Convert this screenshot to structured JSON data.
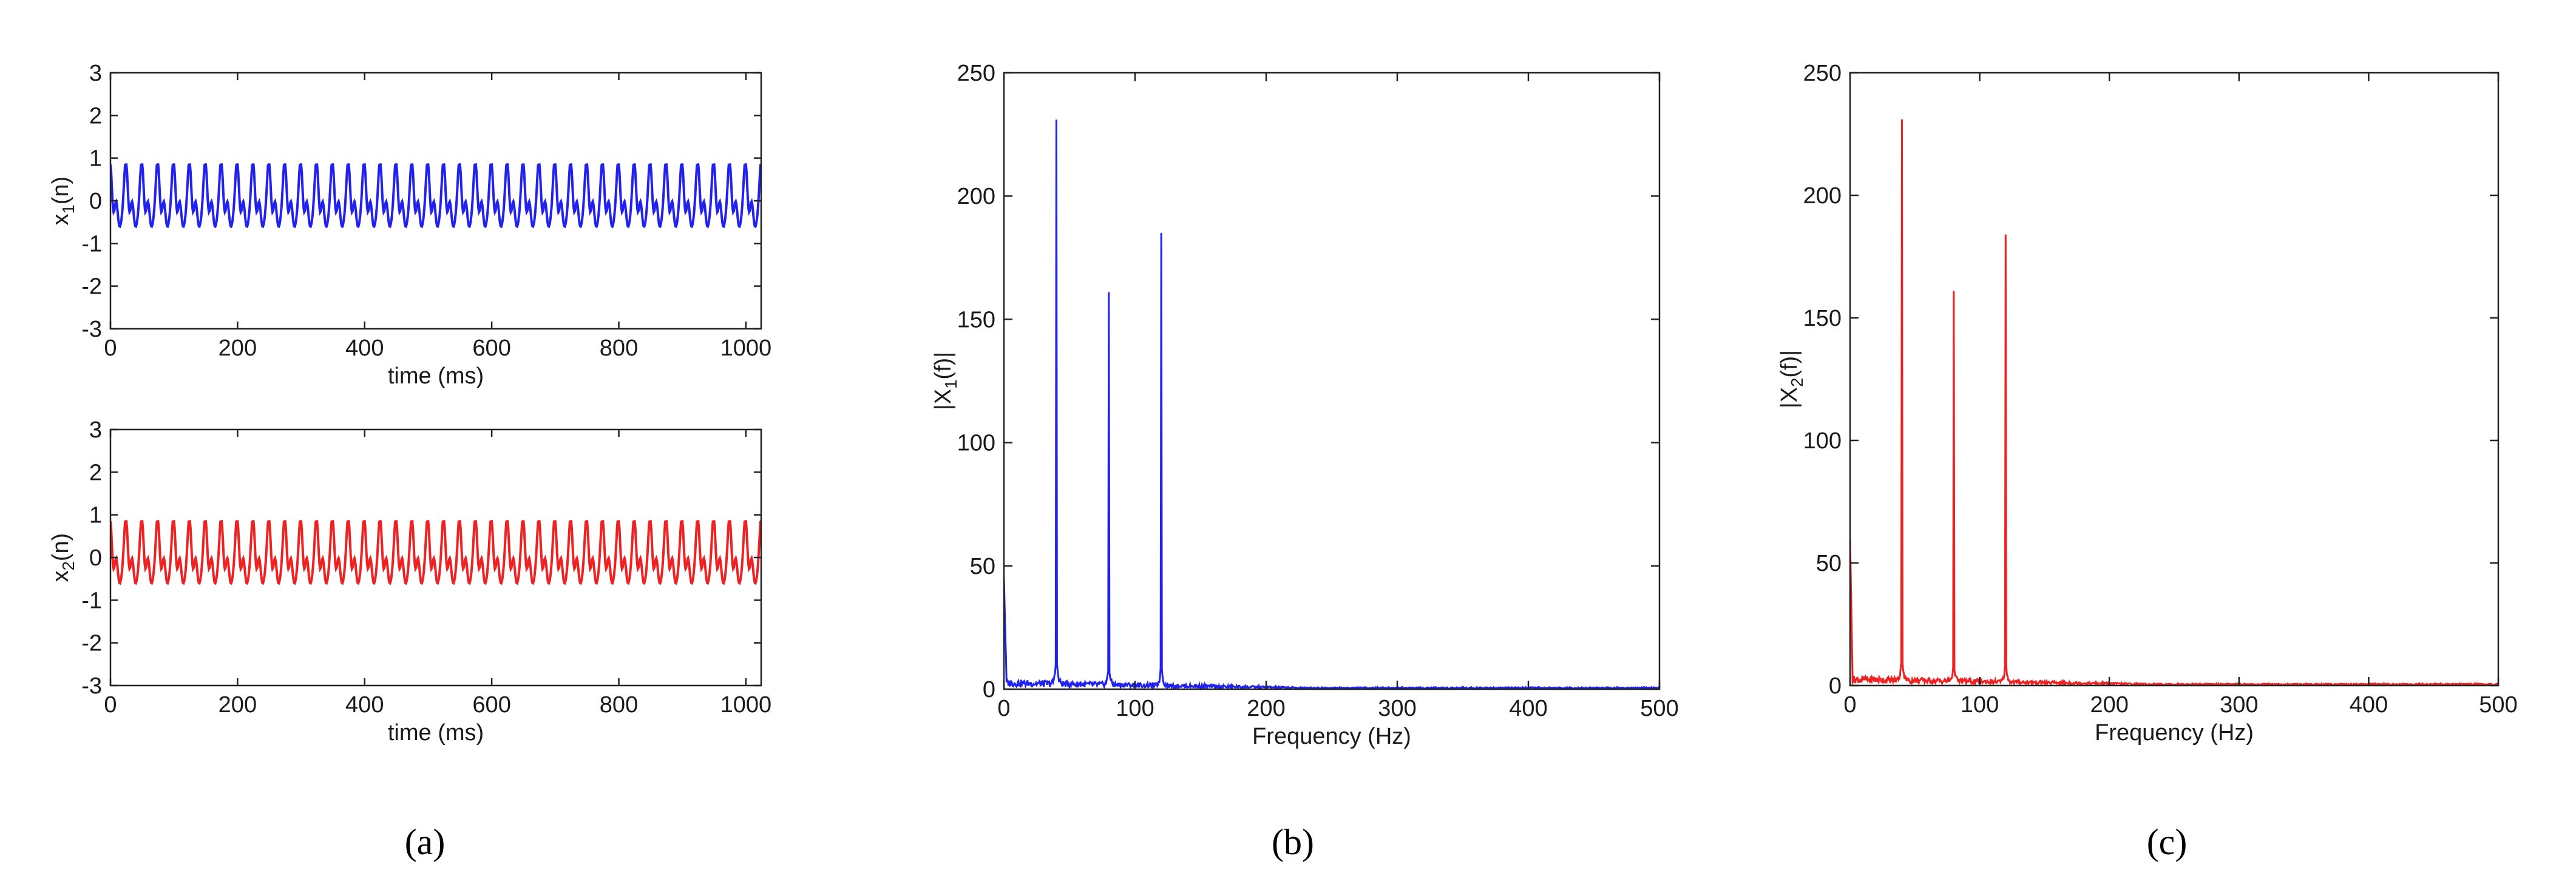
{
  "chart_data": [
    {
      "type": "line",
      "panel": "a",
      "xlabel": "time (ms)",
      "ylabel_base": "x",
      "ylabel_sub": "1",
      "ylabel_tail": "(n)",
      "xlim": [
        0,
        1024
      ],
      "ylim": [
        -3,
        3
      ],
      "xticks": [
        0,
        200,
        400,
        600,
        800,
        1000
      ],
      "yticks": [
        -3,
        -2,
        -1,
        0,
        1,
        2,
        3
      ],
      "signal": {
        "period_ms": 25,
        "amplitude_high": 0.85,
        "amplitude_low": -0.95,
        "inner_swing": 0.3,
        "samples_per_ms": 1
      },
      "color": "#2222ee",
      "grid": false,
      "legend": "none"
    },
    {
      "type": "line",
      "panel": "a",
      "xlabel": "time (ms)",
      "ylabel_base": "x",
      "ylabel_sub": "2",
      "ylabel_tail": "(n)",
      "xlim": [
        0,
        1024
      ],
      "ylim": [
        -3,
        3
      ],
      "xticks": [
        0,
        200,
        400,
        600,
        800,
        1000
      ],
      "yticks": [
        -3,
        -2,
        -1,
        0,
        1,
        2,
        3
      ],
      "signal": {
        "period_ms": 25,
        "amplitude_high": 0.85,
        "amplitude_low": -0.95,
        "inner_swing": 0.3,
        "samples_per_ms": 1
      },
      "color": "#ee2222",
      "grid": false,
      "legend": "none"
    },
    {
      "type": "line",
      "panel": "b",
      "xlabel": "Frequency (Hz)",
      "ylabel_base": "|X",
      "ylabel_sub": "1",
      "ylabel_tail": "(f)|",
      "xlim": [
        0,
        500
      ],
      "ylim": [
        0,
        250
      ],
      "xticks": [
        0,
        100,
        200,
        300,
        400,
        500
      ],
      "yticks": [
        0,
        50,
        100,
        150,
        200,
        250
      ],
      "peaks": [
        {
          "x": 40,
          "y": 231
        },
        {
          "x": 80,
          "y": 161
        },
        {
          "x": 120,
          "y": 185
        }
      ],
      "start_value": 45,
      "noise_floor": 2,
      "color": "#2222ee",
      "grid": false,
      "legend": "none"
    },
    {
      "type": "line",
      "panel": "c",
      "xlabel": "Frequency (Hz)",
      "ylabel_base": "|X",
      "ylabel_sub": "2",
      "ylabel_tail": "(f)|",
      "xlim": [
        0,
        500
      ],
      "ylim": [
        0,
        250
      ],
      "xticks": [
        0,
        100,
        200,
        300,
        400,
        500
      ],
      "yticks": [
        0,
        50,
        100,
        150,
        200,
        250
      ],
      "peaks": [
        {
          "x": 40,
          "y": 231
        },
        {
          "x": 80,
          "y": 161
        },
        {
          "x": 120,
          "y": 184
        }
      ],
      "start_value": 60,
      "noise_floor": 2,
      "color": "#ee2222",
      "grid": false,
      "legend": "none"
    }
  ],
  "panel_labels": [
    "(a)",
    "(b)",
    "(c)"
  ]
}
